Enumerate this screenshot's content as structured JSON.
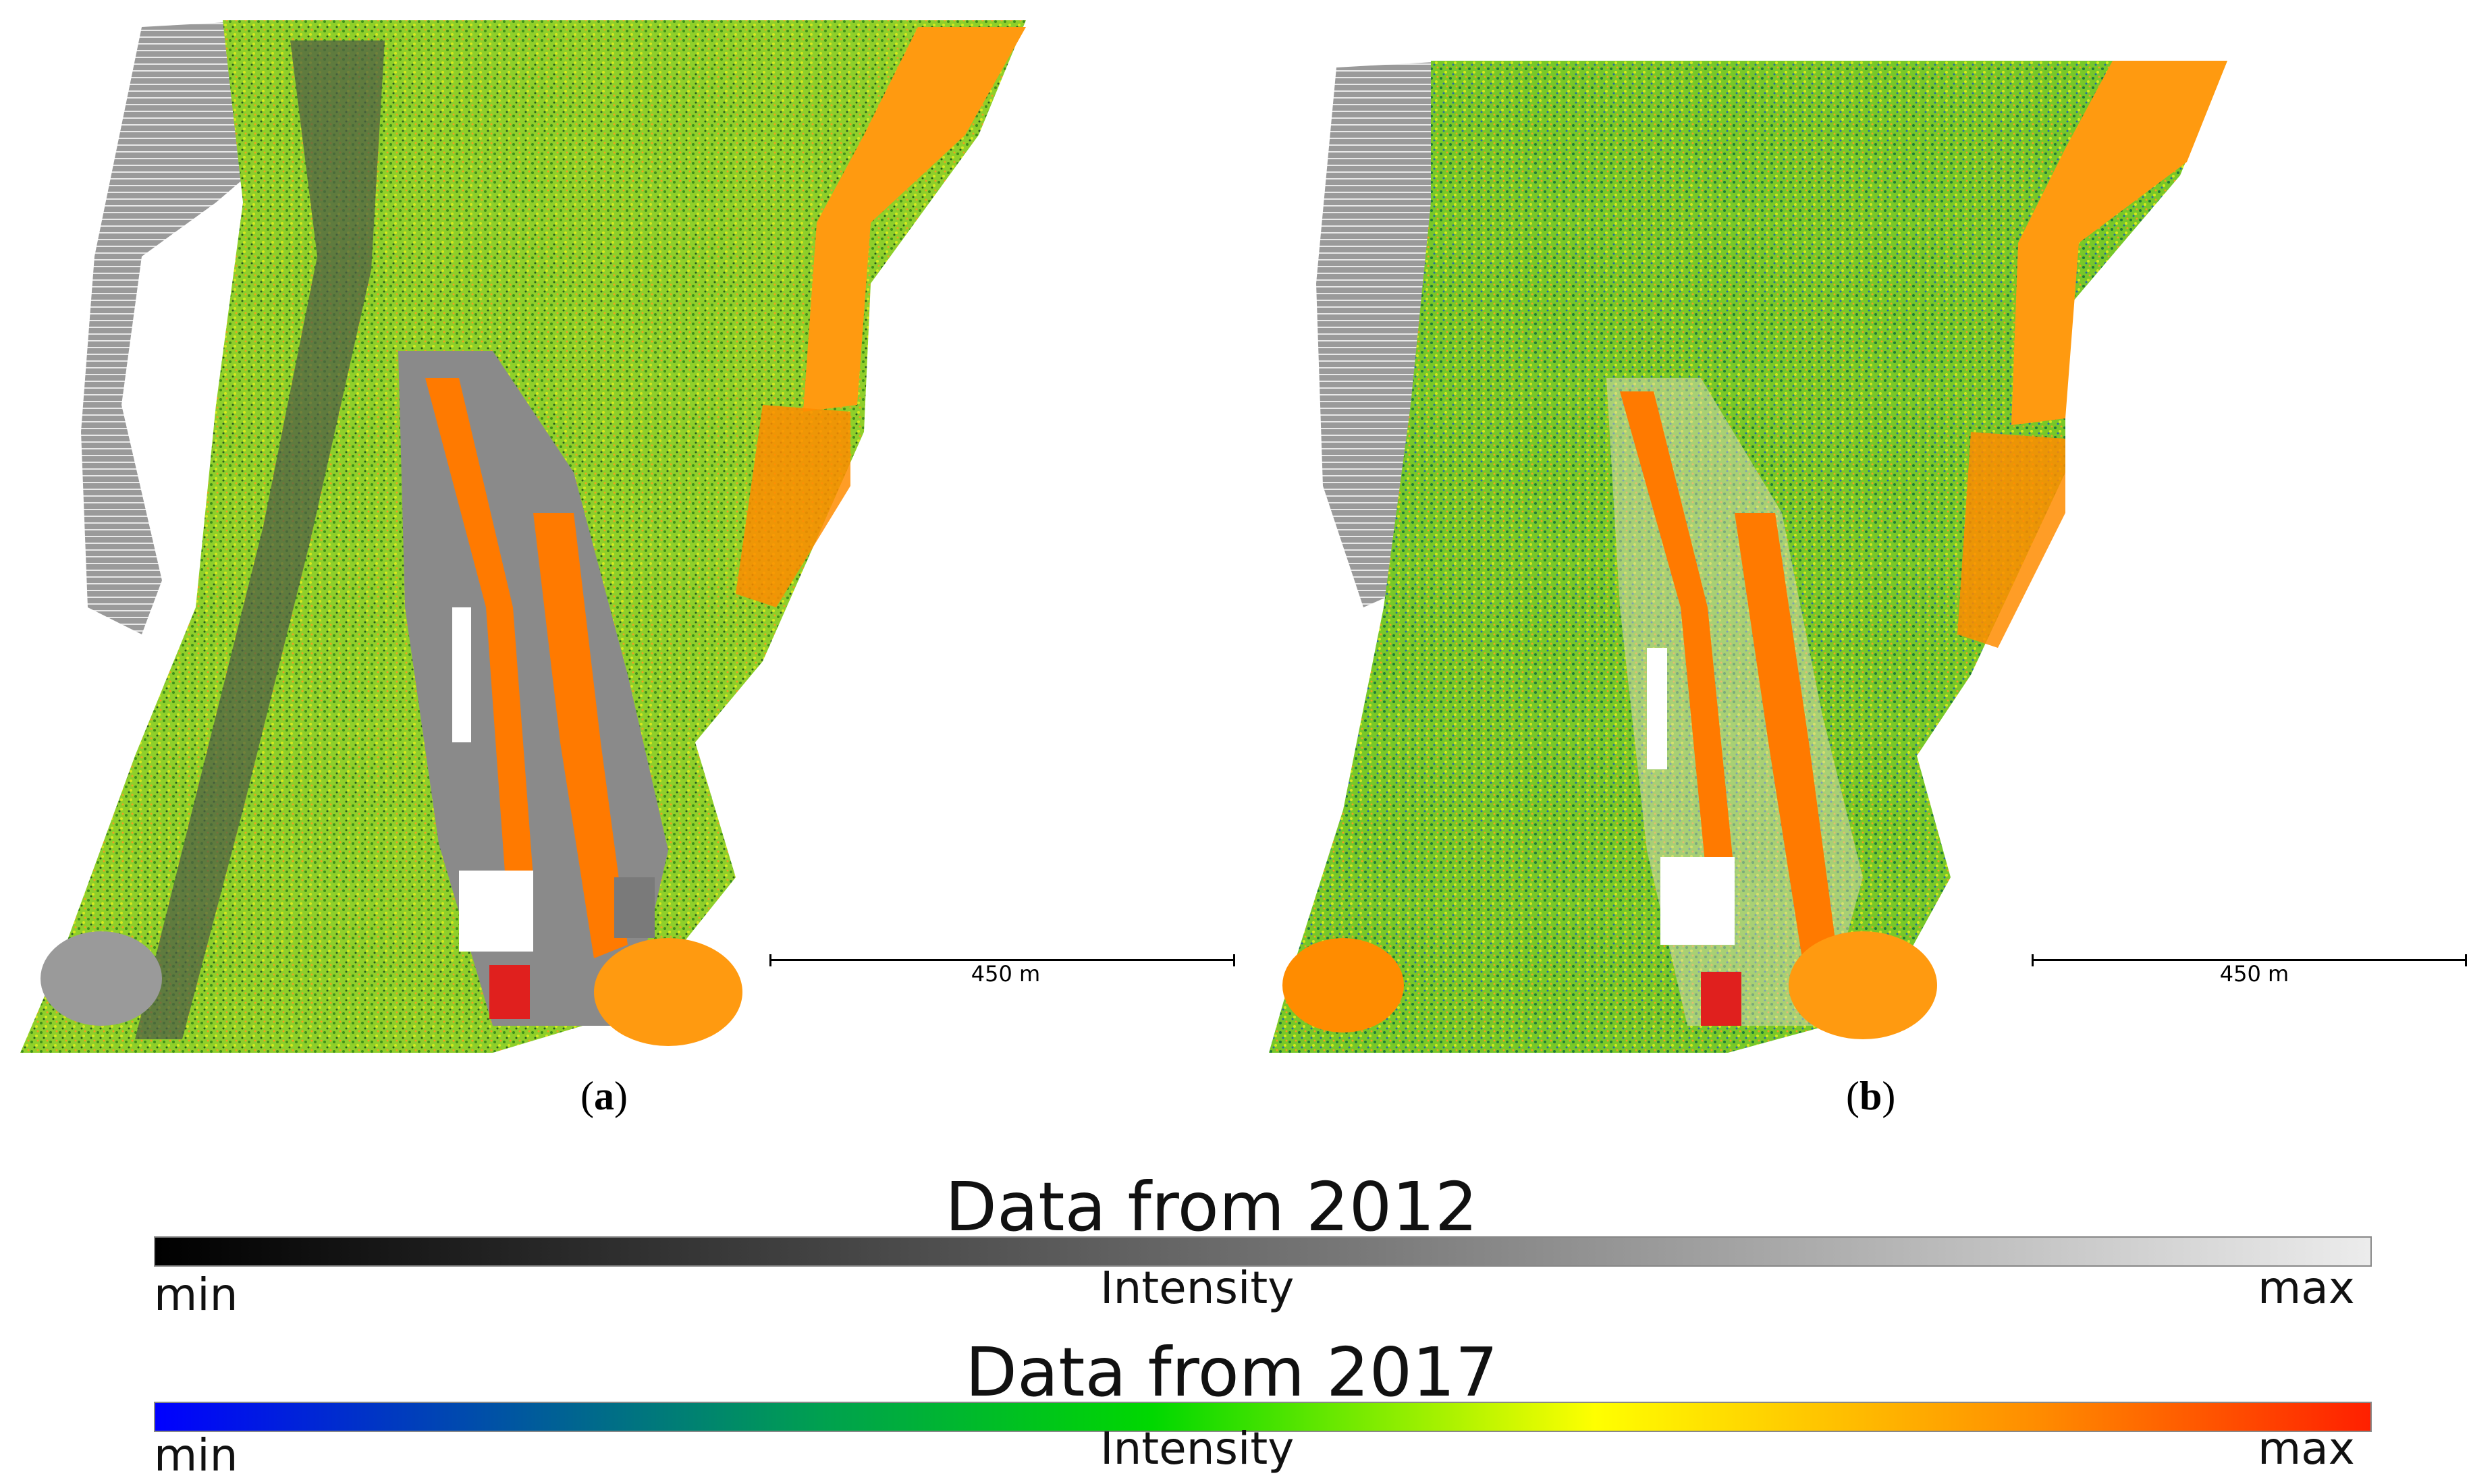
{
  "panels": [
    {
      "caption_letter": "a",
      "scale_label": "450 m"
    },
    {
      "caption_letter": "b",
      "scale_label": "450 m"
    }
  ],
  "legends": [
    {
      "title": "Data from 2012",
      "min_label": "min",
      "center_label": "Intensity",
      "max_label": "max",
      "colormap": "gray"
    },
    {
      "title": "Data from 2017",
      "min_label": "min",
      "center_label": "Intensity",
      "max_label": "max",
      "colormap": "blue-green-yellow-red"
    }
  ],
  "colors": {
    "terrain_gray": "#9a9a9a",
    "vegetation_green": "#7ac81e",
    "vegetation_yellow": "#c8e61e",
    "building_orange": "#ff8c00",
    "roof_red": "#e0201e"
  }
}
